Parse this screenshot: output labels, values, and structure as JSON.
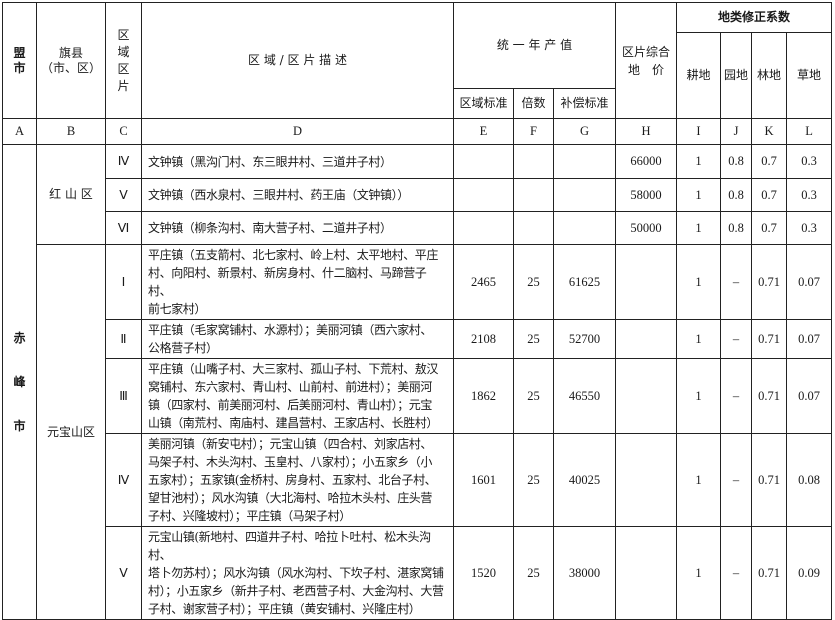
{
  "header": {
    "league": "盟\n市",
    "county": "旗县\n（市、区）",
    "zone": "区\n域\n区\n片",
    "description": "区 域 / 区 片 描 述",
    "unified_value": "统 一 年 产 值",
    "zone_standard": "区域标准",
    "multiplier": "倍数",
    "compensation": "补偿标准",
    "composite_price": "区片综合\n地　价",
    "correction": "地类修正系数",
    "farmland": "耕地",
    "garden": "园地",
    "forest": "林地",
    "grass": "草地"
  },
  "letters": [
    "A",
    "B",
    "C",
    "D",
    "E",
    "F",
    "G",
    "H",
    "I",
    "J",
    "K",
    "L"
  ],
  "city": "赤\n峰\n市",
  "districts": [
    "红 山 区",
    "元宝山区"
  ],
  "rows": [
    {
      "zone": "Ⅳ",
      "desc": "文钟镇（黑沟门村、东三眼井村、三道井子村）",
      "e": "",
      "f": "",
      "g": "",
      "h": "66000",
      "i": "1",
      "j": "0.8",
      "k": "0.7",
      "l": "0.3"
    },
    {
      "zone": "Ⅴ",
      "desc": "文钟镇（西水泉村、三眼井村、药王庙（文钟镇））",
      "e": "",
      "f": "",
      "g": "",
      "h": "58000",
      "i": "1",
      "j": "0.8",
      "k": "0.7",
      "l": "0.3"
    },
    {
      "zone": "Ⅵ",
      "desc": "文钟镇（柳条沟村、南大营子村、二道井子村）",
      "e": "",
      "f": "",
      "g": "",
      "h": "50000",
      "i": "1",
      "j": "0.8",
      "k": "0.7",
      "l": "0.3"
    },
    {
      "zone": "Ⅰ",
      "desc": "平庄镇（五支箭村、北七家村、岭上村、太平地村、平庄\n村、向阳村、新景村、新房身村、什二脑村、马蹄营子村、\n前七家村）",
      "e": "2465",
      "f": "25",
      "g": "61625",
      "h": "",
      "i": "1",
      "j": "–",
      "k": "0.71",
      "l": "0.07"
    },
    {
      "zone": "Ⅱ",
      "desc": "平庄镇（毛家窝铺村、水源村）；美丽河镇（西六家村、\n公格营子村）",
      "e": "2108",
      "f": "25",
      "g": "52700",
      "h": "",
      "i": "1",
      "j": "–",
      "k": "0.71",
      "l": "0.07"
    },
    {
      "zone": "Ⅲ",
      "desc": "平庄镇（山嘴子村、大三家村、孤山子村、下荒村、敖汉\n窝铺村、东六家村、青山村、山前村、前进村）；美丽河\n镇（四家村、前美丽河村、后美丽河村、青山村）；元宝\n山镇（南荒村、南庙村、建昌营村、王家店村、长胜村）",
      "e": "1862",
      "f": "25",
      "g": "46550",
      "h": "",
      "i": "1",
      "j": "–",
      "k": "0.71",
      "l": "0.07"
    },
    {
      "zone": "Ⅳ",
      "desc": "美丽河镇（新安屯村）；元宝山镇（四合村、刘家店村、\n马架子村、木头沟村、玉皇村、八家村）；小五家乡（小\n五家村）；五家镇(金桥村、房身村、五家村、北台子村、\n望甘池村）；风水沟镇（大北海村、哈拉木头村、庄头营\n子村、兴隆坡村）；平庄镇（马架子村）",
      "e": "1601",
      "f": "25",
      "g": "40025",
      "h": "",
      "i": "1",
      "j": "–",
      "k": "0.71",
      "l": "0.08"
    },
    {
      "zone": "Ⅴ",
      "desc": "元宝山镇(新地村、四道井子村、哈拉卜吐村、松木头沟村、\n塔卜勿苏村）；风水沟镇（风水沟村、下坎子村、湛家窝铺\n村）；小五家乡（新井子村、老西营子村、大金沟村、大营\n子村、谢家营子村）；平庄镇（黄安铺村、兴隆庄村）",
      "e": "1520",
      "f": "25",
      "g": "38000",
      "h": "",
      "i": "1",
      "j": "–",
      "k": "0.71",
      "l": "0.09"
    }
  ]
}
